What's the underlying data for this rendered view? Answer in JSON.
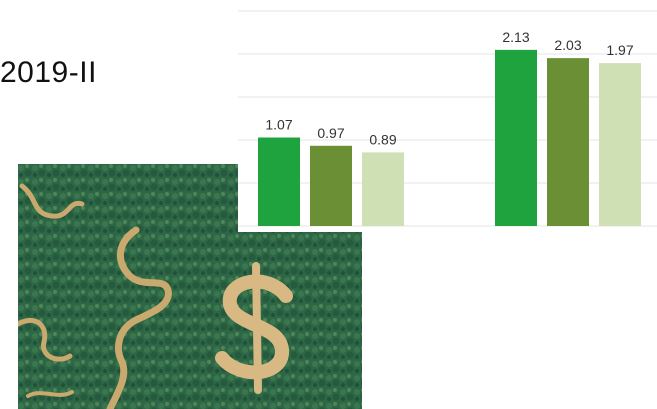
{
  "slide": {
    "title": "2019-II"
  },
  "photo": {
    "icon": "aerial-rainforest-river-dollar-sign-photo"
  },
  "chart_data": {
    "type": "bar",
    "title": "",
    "xlabel": "",
    "ylabel": "",
    "ylim": [
      0,
      2.6
    ],
    "grid": true,
    "categories": [
      "",
      ""
    ],
    "series": [
      {
        "values": [
          1.07,
          2.13
        ],
        "color": "#1fa33f"
      },
      {
        "values": [
          0.97,
          2.03
        ],
        "color": "#6b8f35"
      },
      {
        "values": [
          0.89,
          1.97
        ],
        "color": "#cfe0b4"
      }
    ],
    "data_labels": [
      [
        "1.07",
        "0.97",
        "0.89"
      ],
      [
        "2.13",
        "2.03",
        "1.97"
      ]
    ]
  }
}
